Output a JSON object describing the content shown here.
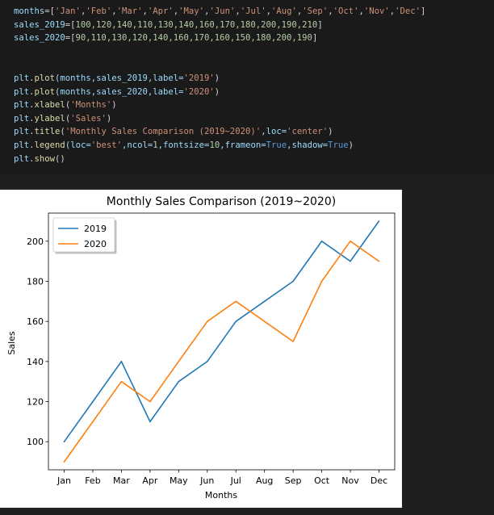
{
  "code": {
    "colors": {
      "default": "#d4d4d4",
      "plain": "#9cdcfe",
      "keyword": "#569cd6",
      "string": "#ce9178",
      "number": "#b5cea8",
      "bool": "#569cd6",
      "fn": "#dcdcaa"
    },
    "lines": [
      [
        {
          "t": "months",
          "c": "plain"
        },
        {
          "t": "=[",
          "c": "default"
        },
        {
          "t": "'Jan'",
          "c": "string"
        },
        {
          "t": ",",
          "c": "default"
        },
        {
          "t": "'Feb'",
          "c": "string"
        },
        {
          "t": ",",
          "c": "default"
        },
        {
          "t": "'Mar'",
          "c": "string"
        },
        {
          "t": ",",
          "c": "default"
        },
        {
          "t": "'Apr'",
          "c": "string"
        },
        {
          "t": ",",
          "c": "default"
        },
        {
          "t": "'May'",
          "c": "string"
        },
        {
          "t": ",",
          "c": "default"
        },
        {
          "t": "'Jun'",
          "c": "string"
        },
        {
          "t": ",",
          "c": "default"
        },
        {
          "t": "'Jul'",
          "c": "string"
        },
        {
          "t": ",",
          "c": "default"
        },
        {
          "t": "'Aug'",
          "c": "string"
        },
        {
          "t": ",",
          "c": "default"
        },
        {
          "t": "'Sep'",
          "c": "string"
        },
        {
          "t": ",",
          "c": "default"
        },
        {
          "t": "'Oct'",
          "c": "string"
        },
        {
          "t": ",",
          "c": "default"
        },
        {
          "t": "'Nov'",
          "c": "string"
        },
        {
          "t": ",",
          "c": "default"
        },
        {
          "t": "'Dec'",
          "c": "string"
        },
        {
          "t": "]",
          "c": "default"
        }
      ],
      [
        {
          "t": "sales_2019",
          "c": "plain"
        },
        {
          "t": "=[",
          "c": "default"
        },
        {
          "t": "100,120,140,110,130,140,160,170,180,200,190,210",
          "c": "number"
        },
        {
          "t": "]",
          "c": "default"
        }
      ],
      [
        {
          "t": "sales_2020",
          "c": "plain"
        },
        {
          "t": "=[",
          "c": "default"
        },
        {
          "t": "90,110,130,120,140,160,170,160,150,180,200,190",
          "c": "number"
        },
        {
          "t": "]",
          "c": "default"
        }
      ],
      [],
      [],
      [
        {
          "t": "plt",
          "c": "plain"
        },
        {
          "t": ".",
          "c": "default"
        },
        {
          "t": "plot",
          "c": "fn"
        },
        {
          "t": "(months,sales_2019,label=",
          "c": "plain"
        },
        {
          "t": "'2019'",
          "c": "string"
        },
        {
          "t": ")",
          "c": "default"
        }
      ],
      [
        {
          "t": "plt",
          "c": "plain"
        },
        {
          "t": ".",
          "c": "default"
        },
        {
          "t": "plot",
          "c": "fn"
        },
        {
          "t": "(months,sales_2020,label=",
          "c": "plain"
        },
        {
          "t": "'2020'",
          "c": "string"
        },
        {
          "t": ")",
          "c": "default"
        }
      ],
      [
        {
          "t": "plt",
          "c": "plain"
        },
        {
          "t": ".",
          "c": "default"
        },
        {
          "t": "xlabel",
          "c": "fn"
        },
        {
          "t": "(",
          "c": "default"
        },
        {
          "t": "'Months'",
          "c": "string"
        },
        {
          "t": ")",
          "c": "default"
        }
      ],
      [
        {
          "t": "plt",
          "c": "plain"
        },
        {
          "t": ".",
          "c": "default"
        },
        {
          "t": "ylabel",
          "c": "fn"
        },
        {
          "t": "(",
          "c": "default"
        },
        {
          "t": "'Sales'",
          "c": "string"
        },
        {
          "t": ")",
          "c": "default"
        }
      ],
      [
        {
          "t": "plt",
          "c": "plain"
        },
        {
          "t": ".",
          "c": "default"
        },
        {
          "t": "title",
          "c": "fn"
        },
        {
          "t": "(",
          "c": "default"
        },
        {
          "t": "'Monthly Sales Comparison (2019~2020)'",
          "c": "string"
        },
        {
          "t": ",loc=",
          "c": "plain"
        },
        {
          "t": "'center'",
          "c": "string"
        },
        {
          "t": ")",
          "c": "default"
        }
      ],
      [
        {
          "t": "plt",
          "c": "plain"
        },
        {
          "t": ".",
          "c": "default"
        },
        {
          "t": "legend",
          "c": "fn"
        },
        {
          "t": "(loc=",
          "c": "plain"
        },
        {
          "t": "'best'",
          "c": "string"
        },
        {
          "t": ",ncol=",
          "c": "plain"
        },
        {
          "t": "1",
          "c": "number"
        },
        {
          "t": ",fontsize=",
          "c": "plain"
        },
        {
          "t": "10",
          "c": "number"
        },
        {
          "t": ",frameon=",
          "c": "plain"
        },
        {
          "t": "True",
          "c": "bool"
        },
        {
          "t": ",shadow=",
          "c": "plain"
        },
        {
          "t": "True",
          "c": "bool"
        },
        {
          "t": ")",
          "c": "default"
        }
      ],
      [
        {
          "t": "plt",
          "c": "plain"
        },
        {
          "t": ".",
          "c": "default"
        },
        {
          "t": "show",
          "c": "fn"
        },
        {
          "t": "()",
          "c": "default"
        }
      ]
    ]
  },
  "chart_data": {
    "type": "line",
    "title": "Monthly Sales Comparison (2019~2020)",
    "xlabel": "Months",
    "ylabel": "Sales",
    "categories": [
      "Jan",
      "Feb",
      "Mar",
      "Apr",
      "May",
      "Jun",
      "Jul",
      "Aug",
      "Sep",
      "Oct",
      "Nov",
      "Dec"
    ],
    "series": [
      {
        "name": "2019",
        "color": "#1f77b4",
        "values": [
          100,
          120,
          140,
          110,
          130,
          140,
          160,
          170,
          180,
          200,
          190,
          210
        ]
      },
      {
        "name": "2020",
        "color": "#ff7f0e",
        "values": [
          90,
          110,
          130,
          120,
          140,
          160,
          170,
          160,
          150,
          180,
          200,
          190
        ]
      }
    ],
    "yticks": [
      100,
      120,
      140,
      160,
      180,
      200
    ],
    "ylim": [
      86,
      214
    ],
    "grid": false,
    "legend": {
      "placement": "upper-left",
      "frame": true,
      "shadow": true
    }
  }
}
